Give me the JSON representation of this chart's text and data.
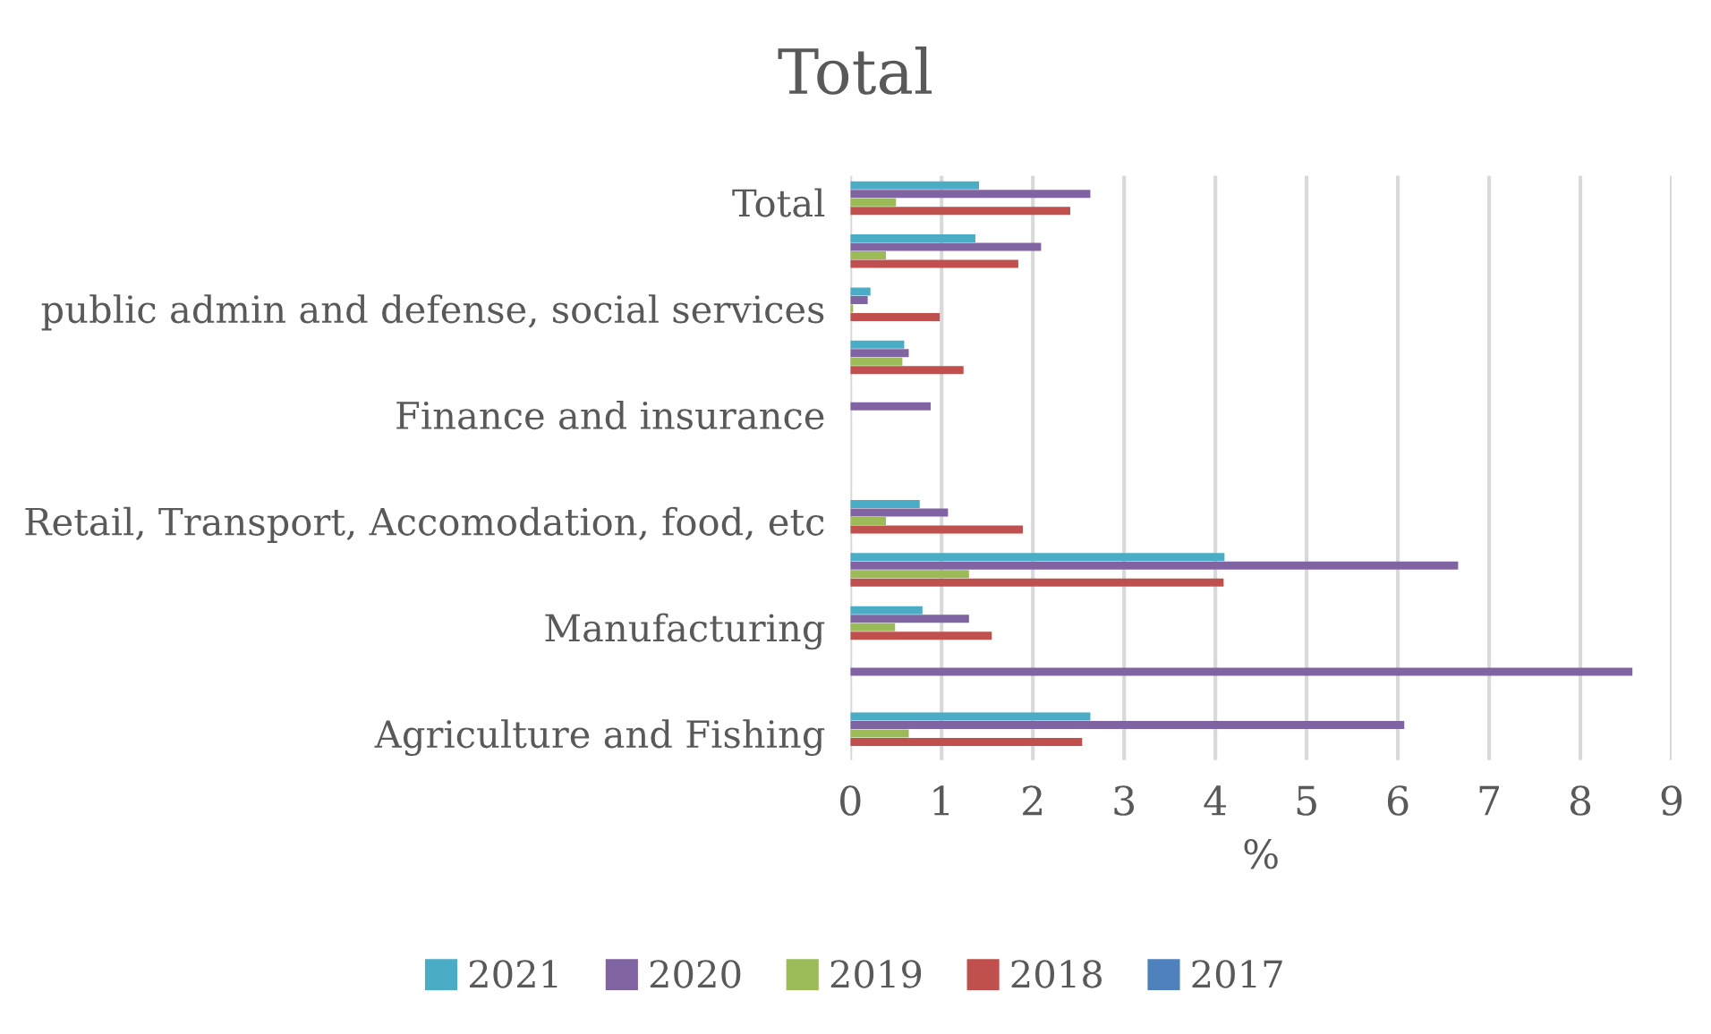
{
  "chart_data": {
    "type": "bar",
    "orientation": "horizontal",
    "title": "Total",
    "xlabel": "%",
    "categories": [
      "Total",
      null,
      "public admin and defense, social services",
      null,
      "Finance and insurance",
      null,
      "Retail, Transport, Accomodation, food, etc",
      null,
      "Manufacturing",
      null,
      "Agriculture and Fishing"
    ],
    "series": [
      {
        "name": "2021",
        "color": "#4bacc6",
        "values": [
          1.41,
          1.37,
          0.22,
          0.59,
          null,
          null,
          0.76,
          4.1,
          0.79,
          null,
          2.63
        ]
      },
      {
        "name": "2020",
        "color": "#8064a2",
        "values": [
          2.63,
          2.09,
          0.19,
          0.64,
          0.88,
          null,
          1.07,
          6.66,
          1.3,
          8.57,
          6.07
        ]
      },
      {
        "name": "2019",
        "color": "#9bbb59",
        "values": [
          0.5,
          0.39,
          0.03,
          0.57,
          null,
          null,
          0.39,
          1.3,
          0.49,
          null,
          0.64
        ]
      },
      {
        "name": "2018",
        "color": "#c0504d",
        "values": [
          2.41,
          1.84,
          0.98,
          1.24,
          null,
          null,
          1.89,
          4.09,
          1.55,
          null,
          2.54
        ]
      },
      {
        "name": "2017",
        "color": "#4f81bd",
        "values": [
          null,
          null,
          null,
          null,
          null,
          null,
          null,
          null,
          null,
          null,
          null
        ]
      }
    ],
    "xlim": [
      0,
      9
    ],
    "xticks": [
      0,
      1,
      2,
      3,
      4,
      5,
      6,
      7,
      8,
      9
    ],
    "grid": "x",
    "legend": "bottom"
  }
}
